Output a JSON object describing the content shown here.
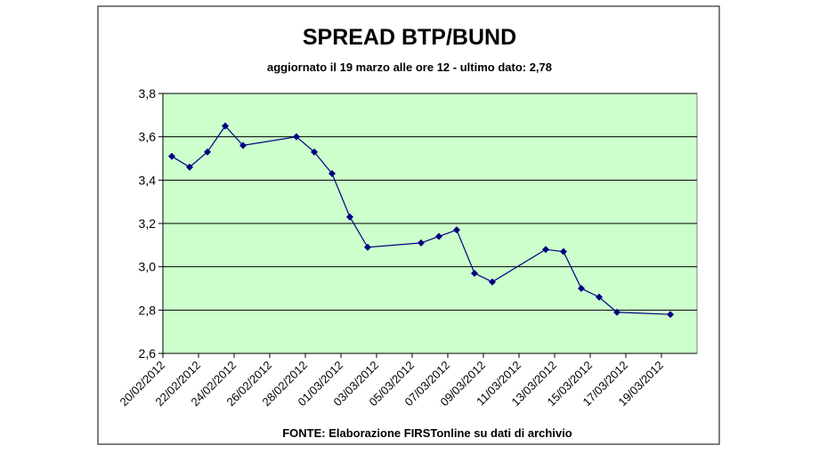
{
  "chart_data": {
    "type": "line",
    "title": "SPREAD BTP/BUND",
    "subtitle": "aggiornato il 19 marzo alle ore 12 - ultimo dato: 2,78",
    "source": "FONTE: Elaborazione FIRSTonline su dati di archivio",
    "x": [
      "20/02/2012",
      "21/02/2012",
      "22/02/2012",
      "23/02/2012",
      "24/02/2012",
      "27/02/2012",
      "28/02/2012",
      "29/02/2012",
      "01/03/2012",
      "02/03/2012",
      "05/03/2012",
      "06/03/2012",
      "07/03/2012",
      "08/03/2012",
      "09/03/2012",
      "12/03/2012",
      "13/03/2012",
      "14/03/2012",
      "15/03/2012",
      "16/03/2012",
      "19/03/2012"
    ],
    "series": [
      {
        "color": "#000080",
        "values": [
          3.51,
          3.46,
          3.53,
          3.65,
          3.56,
          3.6,
          3.53,
          3.43,
          3.23,
          3.09,
          3.11,
          3.14,
          3.17,
          2.97,
          2.93,
          3.08,
          3.07,
          2.9,
          2.86,
          2.79,
          2.78
        ]
      }
    ],
    "xlim": [
      "20/02/2012",
      "21/03/2012"
    ],
    "xticks": [
      "20/02/2012",
      "22/02/2012",
      "24/02/2012",
      "26/02/2012",
      "28/02/2012",
      "01/03/2012",
      "03/03/2012",
      "05/03/2012",
      "07/03/2012",
      "09/03/2012",
      "11/03/2012",
      "13/03/2012",
      "15/03/2012",
      "17/03/2012",
      "19/03/2012"
    ],
    "ylim": [
      2.6,
      3.8
    ],
    "yticks": [
      {
        "value": 2.6,
        "label": "2,6"
      },
      {
        "value": 2.8,
        "label": "2,8"
      },
      {
        "value": 3.0,
        "label": "3,0"
      },
      {
        "value": 3.2,
        "label": "3,2"
      },
      {
        "value": 3.4,
        "label": "3,4"
      },
      {
        "value": 3.6,
        "label": "3,6"
      },
      {
        "value": 3.8,
        "label": "3,8"
      }
    ],
    "grid": true,
    "plot_background": "#ccffcc"
  }
}
